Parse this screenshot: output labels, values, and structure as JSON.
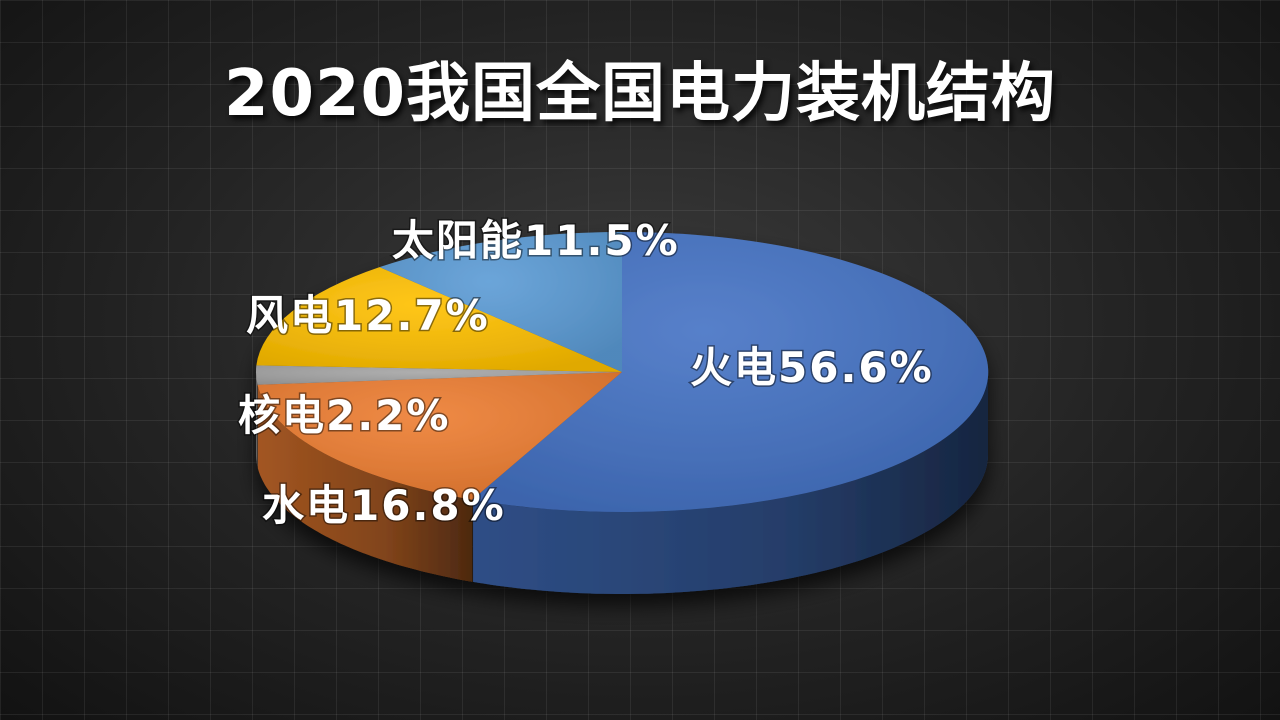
{
  "chart_data": {
    "type": "pie",
    "title": "2020我国全国电力装机结构",
    "slices": [
      {
        "name": "火电",
        "value": 56.6,
        "label": "火电56.6%",
        "color": "#4472C4"
      },
      {
        "name": "水电",
        "value": 16.8,
        "label": "水电16.8%",
        "color": "#ED7D31"
      },
      {
        "name": "核电",
        "value": 2.2,
        "label": "核电2.2%",
        "color": "#A5A5A5"
      },
      {
        "name": "风电",
        "value": 12.7,
        "label": "风电12.7%",
        "color": "#FFC000"
      },
      {
        "name": "太阳能",
        "value": 11.5,
        "label": "太阳能11.5%",
        "color": "#5B9BD5"
      }
    ],
    "style": "3d-pie",
    "legend": "none",
    "start": "12 o'clock, clockwise"
  }
}
